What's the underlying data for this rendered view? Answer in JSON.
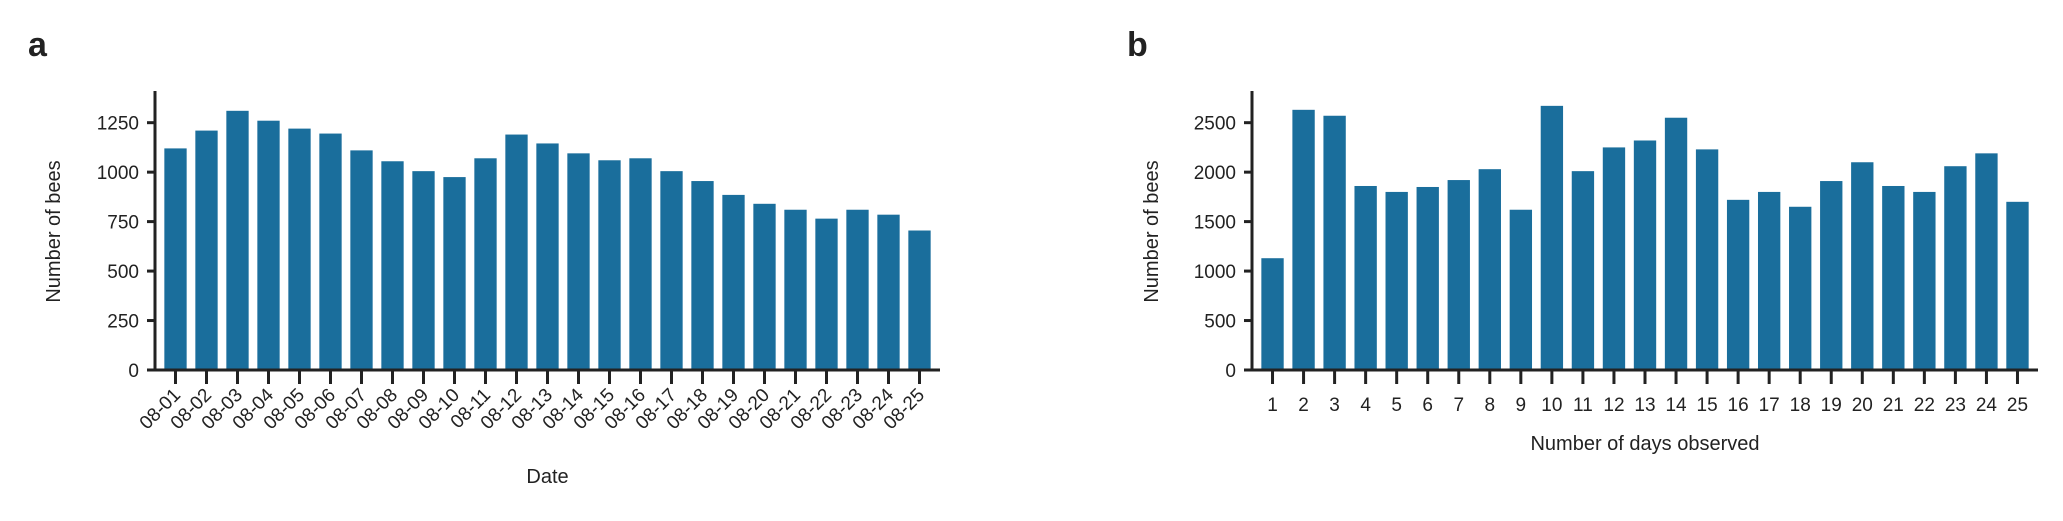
{
  "colors": {
    "bar": "#1a6e9c",
    "axis": "#222222",
    "background": "#ffffff"
  },
  "chart_data": [
    {
      "panel_label": "a",
      "type": "bar",
      "categories": [
        "08-01",
        "08-02",
        "08-03",
        "08-04",
        "08-05",
        "08-06",
        "08-07",
        "08-08",
        "08-09",
        "08-10",
        "08-11",
        "08-12",
        "08-13",
        "08-14",
        "08-15",
        "08-16",
        "08-17",
        "08-18",
        "08-19",
        "08-20",
        "08-21",
        "08-22",
        "08-23",
        "08-24",
        "08-25"
      ],
      "values": [
        1120,
        1210,
        1310,
        1260,
        1220,
        1195,
        1110,
        1055,
        1005,
        975,
        1070,
        1190,
        1145,
        1095,
        1060,
        1070,
        1005,
        955,
        885,
        840,
        810,
        765,
        810,
        785,
        705
      ],
      "xlabel": "Date",
      "ylabel": "Number of bees",
      "ylim": [
        0,
        1400
      ],
      "yticks": [
        0,
        250,
        500,
        750,
        1000,
        1250
      ],
      "xtick_rotation": "diagonal",
      "grid": false,
      "legend": "none"
    },
    {
      "panel_label": "b",
      "type": "bar",
      "categories": [
        "1",
        "2",
        "3",
        "4",
        "5",
        "6",
        "7",
        "8",
        "9",
        "10",
        "11",
        "12",
        "13",
        "14",
        "15",
        "16",
        "17",
        "18",
        "19",
        "20",
        "21",
        "22",
        "23",
        "24",
        "25"
      ],
      "values": [
        1130,
        2630,
        2570,
        1860,
        1800,
        1850,
        1920,
        2030,
        1620,
        2670,
        2010,
        2250,
        2320,
        2550,
        2230,
        1720,
        1800,
        1650,
        1910,
        2100,
        1860,
        1800,
        2060,
        2190,
        1700
      ],
      "xlabel": "Number of days observed",
      "ylabel": "Number of bees",
      "ylim": [
        0,
        2800
      ],
      "yticks": [
        0,
        500,
        1000,
        1500,
        2000,
        2500
      ],
      "xtick_rotation": "none",
      "grid": false,
      "legend": "none"
    }
  ]
}
